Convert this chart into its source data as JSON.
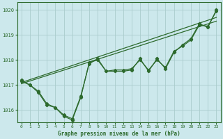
{
  "xlabel": "Graphe pression niveau de la mer (hPa)",
  "background_color": "#cce8ec",
  "grid_color": "#b0d4d8",
  "line_color": "#2d6a2d",
  "xlim": [
    -0.5,
    23.5
  ],
  "ylim": [
    1015.5,
    1020.3
  ],
  "yticks": [
    1016,
    1017,
    1018,
    1019,
    1020
  ],
  "xticks": [
    0,
    1,
    2,
    3,
    4,
    5,
    6,
    7,
    8,
    9,
    10,
    11,
    12,
    13,
    14,
    15,
    16,
    17,
    18,
    19,
    20,
    21,
    22,
    23
  ],
  "main_y": [
    1017.2,
    1017.0,
    1016.7,
    1016.2,
    1016.1,
    1015.75,
    1015.6,
    1016.5,
    1017.9,
    1018.0,
    1017.55,
    1017.55,
    1017.55,
    1017.6,
    1018.05,
    1017.55,
    1018.05,
    1017.65,
    1018.3,
    1018.6,
    1018.85,
    1019.45,
    1019.3,
    1020.0
  ],
  "line2_y": [
    1017.15,
    1017.0,
    1016.75,
    1016.25,
    1016.1,
    1015.8,
    1015.65,
    1016.55,
    1017.85,
    1018.05,
    1017.55,
    1017.6,
    1017.6,
    1017.65,
    1018.0,
    1017.6,
    1018.0,
    1017.7,
    1018.35,
    1018.55,
    1018.8,
    1019.4,
    1019.35,
    1019.95
  ],
  "trend1_x": [
    0,
    23
  ],
  "trend1_y": [
    1017.1,
    1019.7
  ],
  "trend2_x": [
    0,
    23
  ],
  "trend2_y": [
    1017.05,
    1019.55
  ]
}
